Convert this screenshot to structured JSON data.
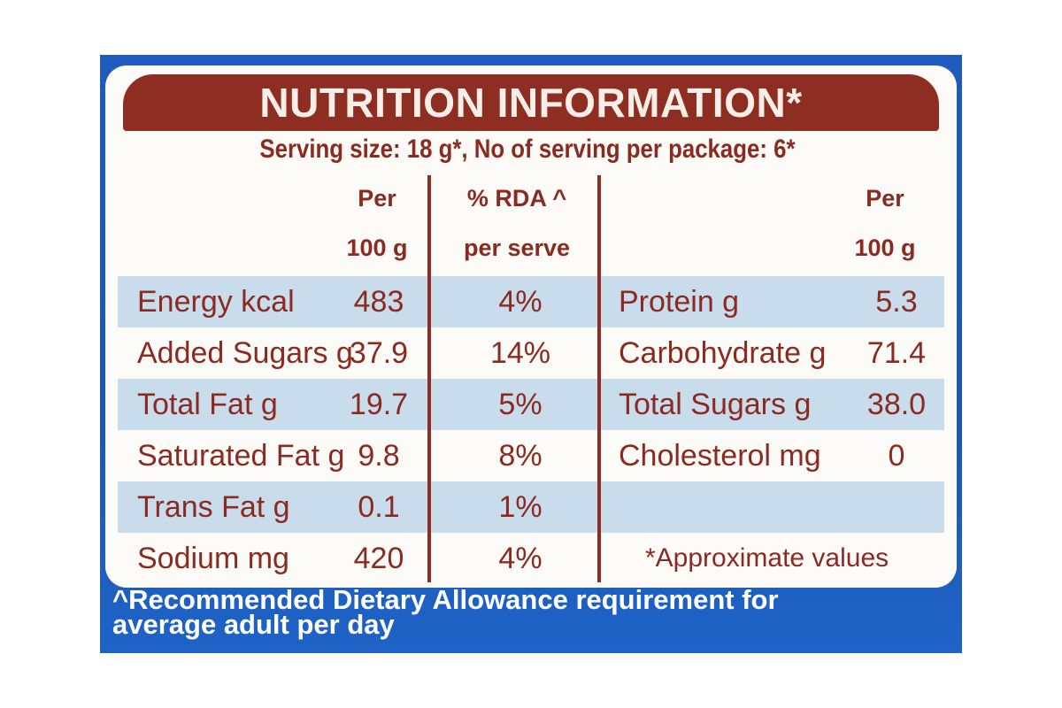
{
  "title": "NUTRITION INFORMATION*",
  "serving": "Serving size: 18 g*, No of serving per package: 6*",
  "headers": {
    "per100_line1": "Per",
    "per100_line2": "100 g",
    "rda_line1": "% RDA ^",
    "rda_line2": "per serve",
    "right_per_line1": "Per",
    "right_per_line2": "100 g"
  },
  "rows": [
    {
      "name": "Energy kcal",
      "per100": "483",
      "rda": "4%",
      "r_name": "Protein g",
      "r_value": "5.3"
    },
    {
      "name": "Added Sugars g",
      "per100": "37.9",
      "rda": "14%",
      "r_name": "Carbohydrate g",
      "r_value": "71.4"
    },
    {
      "name": "Total Fat g",
      "per100": "19.7",
      "rda": "5%",
      "r_name": "Total Sugars g",
      "r_value": "38.0"
    },
    {
      "name": "Saturated Fat g",
      "per100": "9.8",
      "rda": "8%",
      "r_name": "Cholesterol mg",
      "r_value": "0"
    },
    {
      "name": "Trans Fat g",
      "per100": "0.1",
      "rda": "1%",
      "r_name": "",
      "r_value": ""
    },
    {
      "name": "Sodium mg",
      "per100": "420",
      "rda": "4%",
      "r_name": "*Approximate values",
      "r_value": ""
    }
  ],
  "footer_line1": "^Recommended Dietary Allowance requirement for",
  "footer_line2": "average adult per day",
  "colors": {
    "brand_blue": "#1f5bbf",
    "brown": "#8e2d22",
    "row_shade": "#c9dcec"
  }
}
